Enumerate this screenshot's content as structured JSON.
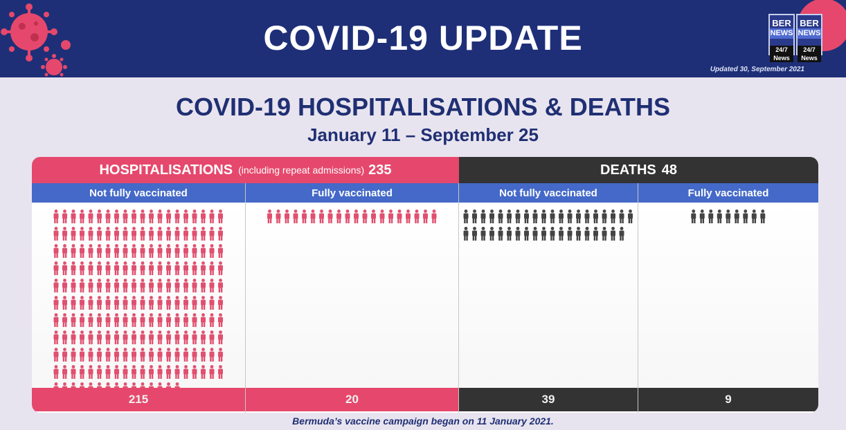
{
  "header": {
    "title": "COVID-19 UPDATE",
    "updated": "Updated 30, September 2021",
    "logo": {
      "line1": "BER",
      "line2": "NEWS",
      "line3": "24/7 News"
    }
  },
  "section_title": "COVID-19 HOSPITALISATIONS & DEATHS",
  "subtitle": "January 11  – September 25",
  "footnote": "Bermuda’s vaccine campaign began on 11 January 2021.",
  "colors": {
    "brand_navy": "#1e2f78",
    "hospital_pink": "#e5486c",
    "deaths_dark": "#333333",
    "subheader_blue": "#4469c8",
    "icon_pink": "#e0506f",
    "icon_dark": "#444444"
  },
  "chart_data": {
    "type": "pictograph",
    "groups": [
      {
        "name": "HOSPITALISATIONS",
        "note": "(including repeat admissions)",
        "total": 235,
        "color": "#e5486c",
        "categories": [
          "Not fully vaccinated",
          "Fully vaccinated"
        ],
        "values": [
          215,
          20
        ]
      },
      {
        "name": "DEATHS",
        "total": 48,
        "color": "#333333",
        "categories": [
          "Not fully vaccinated",
          "Fully vaccinated"
        ],
        "values": [
          39,
          9
        ]
      }
    ],
    "icon": "person-icon"
  }
}
